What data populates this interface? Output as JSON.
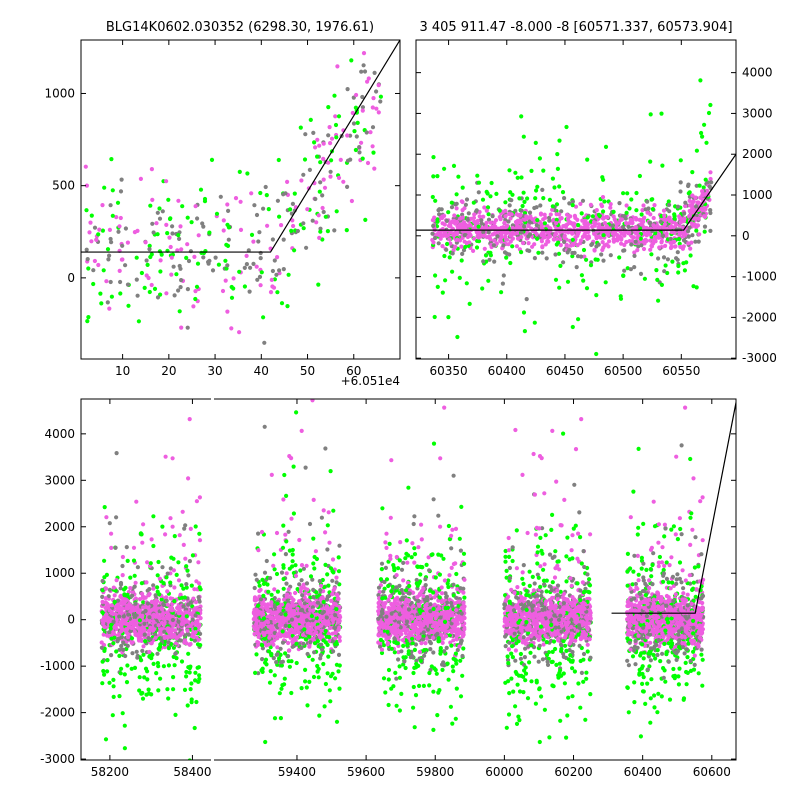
{
  "chart_data": [
    {
      "type": "scatter",
      "title": "BLG14K0602.030352 (6298.30, 1976.61)",
      "x_offset_label": "+6.051e4",
      "xticks": [
        10,
        20,
        30,
        40,
        50,
        60
      ],
      "yticks": [
        0,
        500,
        1000
      ],
      "xlim": [
        1,
        70
      ],
      "ylim": [
        -440,
        1290
      ],
      "grid": false,
      "y_axis_side": "left",
      "model_line": {
        "x": [
          1,
          42,
          70
        ],
        "y": [
          140,
          140,
          1290
        ]
      },
      "series": [
        {
          "color": "#808080"
        },
        {
          "color": "#00ff00"
        },
        {
          "color": "#ee5ee0"
        }
      ]
    },
    {
      "type": "scatter",
      "title": "3 405 911.47 -8.000 -8 [60571.337, 60573.904]",
      "xticks": [
        60350,
        60400,
        60450,
        60500,
        60550
      ],
      "yticks": [
        -3000,
        -2000,
        -1000,
        0,
        1000,
        2000,
        3000,
        4000
      ],
      "xlim": [
        60322,
        60597
      ],
      "ylim": [
        -3020,
        4800
      ],
      "grid": false,
      "y_axis_side": "right",
      "model_line": {
        "x": [
          60322,
          60552,
          60597
        ],
        "y": [
          140,
          140,
          2000
        ]
      },
      "series": [
        {
          "color": "#808080"
        },
        {
          "color": "#00ff00"
        },
        {
          "color": "#ee5ee0"
        }
      ]
    },
    {
      "type": "scatter",
      "broken_x_axis": true,
      "segments": [
        {
          "xlim": [
            58130,
            58445
          ],
          "xticks": [
            58200,
            58400
          ]
        },
        {
          "xlim": [
            59160,
            60670
          ],
          "xticks": [
            59400,
            59600,
            59800,
            60000,
            60200,
            60400,
            60600
          ]
        }
      ],
      "yticks": [
        -3000,
        -2000,
        -1000,
        0,
        1000,
        2000,
        3000,
        4000
      ],
      "ylim": [
        -3020,
        4750
      ],
      "grid": false,
      "y_axis_side": "left",
      "model_line": {
        "x": [
          60310,
          60552,
          60672
        ],
        "y": [
          140,
          140,
          4750
        ]
      },
      "seasons": [
        {
          "center": 58300,
          "halfwidth": 120
        },
        {
          "center": 59400,
          "halfwidth": 125
        },
        {
          "center": 59760,
          "halfwidth": 125
        },
        {
          "center": 60125,
          "halfwidth": 125
        },
        {
          "center": 60465,
          "halfwidth": 110
        }
      ],
      "series": [
        {
          "color": "#808080"
        },
        {
          "color": "#00ff00"
        },
        {
          "color": "#ee5ee0"
        }
      ]
    }
  ]
}
